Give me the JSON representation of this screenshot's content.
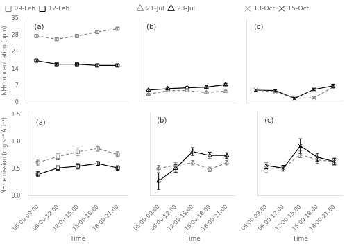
{
  "chart_data": [
    {
      "type": "line",
      "categories": [
        "06:00-09:00",
        "09:00-12:00",
        "12:00-15:00",
        "15:00-18:00",
        "18:00-21:00"
      ],
      "y_label": "NH₃ concentration (ppm)",
      "annotations": [
        {
          "text": "(a)"
        }
      ],
      "series": [
        {
          "name": "09-Feb",
          "color": "#808080",
          "marker": "square",
          "line_style": "dashed",
          "values": [
            27.8,
            26.5,
            27.8,
            29.5,
            30.8
          ],
          "errors": [
            0.5,
            0.5,
            0.5,
            0.5,
            0.5
          ]
        },
        {
          "name": "12-Feb",
          "color": "#000000",
          "marker": "square",
          "line_style": "solid",
          "values": [
            17.5,
            16.0,
            16.0,
            15.5,
            15.5
          ],
          "errors": [
            0.4,
            0.4,
            0.4,
            0.4,
            0.4
          ]
        }
      ],
      "ylim": [
        0,
        35
      ],
      "yticks": [
        0,
        7,
        14,
        21,
        28,
        35
      ],
      "grid": false,
      "legend": "top",
      "tick_labels": "y"
    },
    {
      "type": "line",
      "categories": [
        "06:00-09:00",
        "09:00-12:00",
        "12:00-15:00",
        "15:00-18:00",
        "18:00-21:00"
      ],
      "annotations": [
        {
          "text": "(b)"
        }
      ],
      "series": [
        {
          "name": "21-Jul",
          "color": "#808080",
          "marker": "triangle",
          "line_style": "dashed",
          "values": [
            3.5,
            5.0,
            5.0,
            4.2,
            4.8
          ],
          "errors": [
            0.3,
            0.5,
            0.4,
            0.4,
            0.4
          ]
        },
        {
          "name": "23-Jul",
          "color": "#000000",
          "marker": "triangle",
          "line_style": "solid",
          "values": [
            5.2,
            5.8,
            6.2,
            6.5,
            7.5
          ],
          "errors": [
            0.5,
            0.5,
            0.5,
            0.5,
            0.5
          ]
        }
      ],
      "ylim": [
        0,
        35
      ],
      "yticks": [
        0,
        7,
        14,
        21,
        28,
        35
      ],
      "grid": false,
      "legend": "top",
      "tick_labels": false
    },
    {
      "type": "line",
      "categories": [
        "06:00-09:00",
        "09:00-12:00",
        "12:00-15:00",
        "15:00-18:00",
        "18:00-21:00"
      ],
      "annotations": [
        {
          "text": "(c)"
        }
      ],
      "series": [
        {
          "name": "13-Oct",
          "color": "#808080",
          "marker": "x",
          "line_style": "dashed",
          "values": [
            5.2,
            4.5,
            1.8,
            2.0,
            6.5
          ],
          "errors": [
            0.4,
            0.3,
            0.3,
            0.4,
            0.7
          ]
        },
        {
          "name": "15-Oct",
          "color": "#000000",
          "marker": "x",
          "line_style": "solid",
          "values": [
            5.2,
            5.0,
            1.8,
            5.5,
            7.0
          ],
          "errors": [
            0.4,
            0.4,
            0.4,
            0.5,
            0.7
          ]
        }
      ],
      "ylim": [
        0,
        35
      ],
      "yticks": [
        0,
        7,
        14,
        21,
        28,
        35
      ],
      "grid": false,
      "legend": "top",
      "tick_labels": false
    },
    {
      "type": "line",
      "categories": [
        "06:00-09:00",
        "09:00-12:00",
        "12:00-15:00",
        "15:00-18:00",
        "18:00-21:00"
      ],
      "x_label": "Time",
      "y_label": "NH₃ emission (mg s⁻¹ AU⁻¹)",
      "annotations": [
        {
          "text": "(a)"
        }
      ],
      "series": [
        {
          "color": "#808080",
          "marker": "square",
          "line_style": "dashed",
          "values": [
            0.62,
            0.73,
            0.82,
            0.88,
            0.77
          ],
          "errors": [
            0.06,
            0.06,
            0.07,
            0.05,
            0.05
          ]
        },
        {
          "color": "#000000",
          "marker": "square",
          "line_style": "solid",
          "values": [
            0.4,
            0.52,
            0.55,
            0.6,
            0.52
          ],
          "errors": [
            0.05,
            0.04,
            0.05,
            0.04,
            0.04
          ]
        }
      ],
      "ylim": [
        0.0,
        1.5
      ],
      "yticks": [
        {
          "value": 0,
          "label": "0.0"
        },
        0.5,
        {
          "value": 1,
          "label": "1.0"
        },
        1.5
      ],
      "grid": false
    },
    {
      "type": "line",
      "categories": [
        "06:00-09:00",
        "09:00-12:00",
        "12:00-15:00",
        "15:00-18:00",
        "18:00-21:00"
      ],
      "x_label": "Time",
      "annotations": [
        {
          "text": "(b)"
        }
      ],
      "series": [
        {
          "color": "#808080",
          "marker": "triangle",
          "line_style": "dashed",
          "values": [
            0.5,
            0.55,
            0.6,
            0.48,
            0.6
          ],
          "errors": [
            0.05,
            0.05,
            0.04,
            0.04,
            0.04
          ]
        },
        {
          "color": "#000000",
          "marker": "triangle",
          "line_style": "solid",
          "values": [
            0.27,
            0.5,
            0.8,
            0.73,
            0.73
          ],
          "errors": [
            0.15,
            0.07,
            0.07,
            0.06,
            0.05
          ]
        }
      ],
      "ylim": [
        0.0,
        1.5
      ],
      "yticks": [
        {
          "value": 0,
          "label": "0.0"
        },
        0.5,
        {
          "value": 1,
          "label": "1.0"
        },
        1.5
      ],
      "grid": false,
      "tick_labels": "x"
    },
    {
      "type": "line",
      "categories": [
        "06:00-09:00",
        "09:00-12:00",
        "12:00-15:00",
        "15:00-18:00",
        "18:00-21:00"
      ],
      "x_label": "Time",
      "annotations": [
        {
          "text": "(c)"
        }
      ],
      "series": [
        {
          "color": "#808080",
          "marker": "x",
          "line_style": "dashed",
          "values": [
            0.5,
            0.5,
            0.75,
            0.65,
            0.62
          ],
          "errors": [
            0.08,
            0.05,
            0.06,
            0.06,
            0.05
          ]
        },
        {
          "color": "#000000",
          "marker": "x",
          "line_style": "solid",
          "values": [
            0.55,
            0.5,
            0.9,
            0.7,
            0.62
          ],
          "errors": [
            0.06,
            0.05,
            0.13,
            0.07,
            0.06
          ]
        }
      ],
      "ylim": [
        0.0,
        1.5
      ],
      "yticks": [
        {
          "value": 0,
          "label": "0.0"
        },
        0.5,
        {
          "value": 1,
          "label": "1.0"
        },
        1.5
      ],
      "grid": false,
      "tick_labels": "x"
    }
  ]
}
